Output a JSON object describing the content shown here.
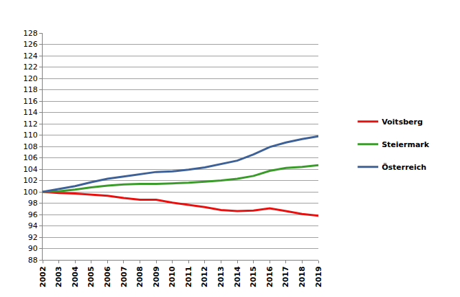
{
  "chart_data": {
    "type": "line",
    "x": [
      2002,
      2003,
      2004,
      2005,
      2006,
      2007,
      2008,
      2009,
      2010,
      2011,
      2012,
      2013,
      2014,
      2015,
      2016,
      2017,
      2018,
      2019
    ],
    "series": [
      {
        "name": "Voitsberg",
        "color": "#e8100f",
        "values": [
          100,
          99.8,
          99.7,
          99.5,
          99.3,
          98.9,
          98.6,
          98.6,
          98.1,
          97.7,
          97.3,
          96.8,
          96.6,
          96.7,
          97.1,
          96.6,
          96.1,
          95.8
        ]
      },
      {
        "name": "Steiermark",
        "color": "#3a9a2a",
        "values": [
          100,
          100.1,
          100.4,
          100.8,
          101.1,
          101.3,
          101.4,
          101.4,
          101.5,
          101.6,
          101.8,
          102.0,
          102.3,
          102.8,
          103.7,
          104.2,
          104.4,
          104.7
        ]
      },
      {
        "name": "Österreich",
        "color": "#3d6196",
        "values": [
          100,
          100.5,
          101.0,
          101.7,
          102.3,
          102.7,
          103.1,
          103.5,
          103.6,
          103.9,
          104.3,
          104.9,
          105.5,
          106.6,
          107.9,
          108.7,
          109.3,
          109.8
        ]
      }
    ],
    "xlim": [
      2002,
      2019
    ],
    "xticks": [
      2002,
      2003,
      2004,
      2005,
      2006,
      2007,
      2008,
      2009,
      2010,
      2011,
      2012,
      2013,
      2014,
      2015,
      2016,
      2017,
      2018,
      2019
    ],
    "ylim": [
      88,
      128
    ],
    "yticks": [
      88,
      90,
      92,
      94,
      96,
      98,
      100,
      102,
      104,
      106,
      108,
      110,
      112,
      114,
      116,
      118,
      120,
      122,
      124,
      126,
      128
    ],
    "grid": true,
    "legend": "right"
  }
}
